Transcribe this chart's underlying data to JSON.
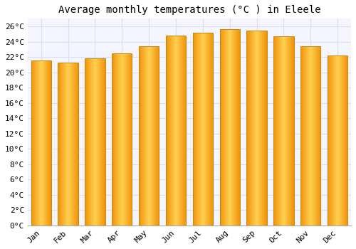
{
  "title": "Average monthly temperatures (°C ) in Eleele",
  "months": [
    "Jan",
    "Feb",
    "Mar",
    "Apr",
    "May",
    "Jun",
    "Jul",
    "Aug",
    "Sep",
    "Oct",
    "Nov",
    "Dec"
  ],
  "temperatures": [
    21.5,
    21.3,
    21.8,
    22.5,
    23.4,
    24.8,
    25.2,
    25.6,
    25.4,
    24.7,
    23.4,
    22.2
  ],
  "bar_color_center": "#FFD050",
  "bar_color_edge": "#F0920A",
  "bar_edge_color": "#CC8800",
  "background_color": "#FFFFFF",
  "plot_bg_color": "#F5F5FF",
  "grid_color": "#DDDDEE",
  "ylim": [
    0,
    27
  ],
  "yticks": [
    0,
    2,
    4,
    6,
    8,
    10,
    12,
    14,
    16,
    18,
    20,
    22,
    24,
    26
  ],
  "title_fontsize": 10,
  "tick_fontsize": 8,
  "font_family": "monospace"
}
